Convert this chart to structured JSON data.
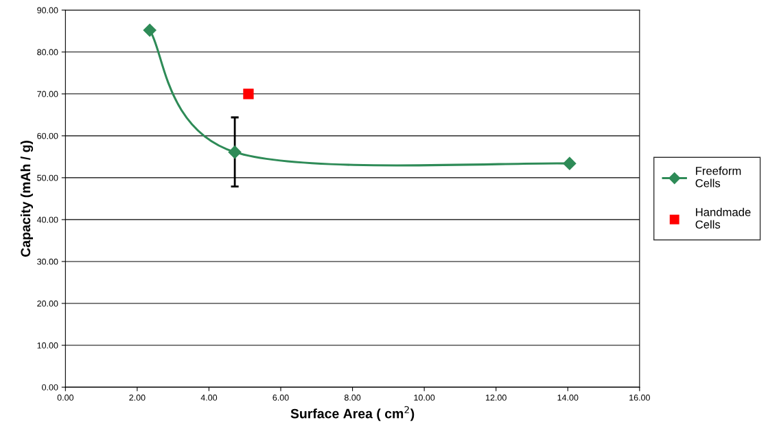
{
  "chart_data": {
    "type": "line",
    "xlabel": "Surface Area ( cm$^{2}$)",
    "ylabel": "Capacity (mAh / g)",
    "series": [
      {
        "name": "Freeform\nCells",
        "color": "#2e8b57",
        "marker": "diamond",
        "x": [
          2.35,
          4.72,
          14.05
        ],
        "values": [
          85.2,
          56.1,
          53.4
        ],
        "errors": [
          null,
          [
            47.9,
            64.4
          ],
          null
        ]
      },
      {
        "name": "Handmade\nCells",
        "type": "scatter",
        "color": "#ff0000",
        "marker": "square",
        "x": [
          5.1
        ],
        "values": [
          70.0
        ]
      }
    ],
    "xlim": [
      0,
      16
    ],
    "ylim": [
      0,
      90
    ],
    "xticks": [
      {
        "value": 0,
        "label": "0.00"
      },
      {
        "value": 2,
        "label": "2.00"
      },
      {
        "value": 4,
        "label": "4.00"
      },
      {
        "value": 6,
        "label": "6.00"
      },
      {
        "value": 8,
        "label": "8.00"
      },
      {
        "value": 10,
        "label": "10.00"
      },
      {
        "value": 12,
        "label": "12.00"
      },
      {
        "value": 14,
        "label": "14.00"
      },
      {
        "value": 16,
        "label": "16.00"
      }
    ],
    "yticks": [
      {
        "value": 0,
        "label": "0.00"
      },
      {
        "value": 10,
        "label": "10.00"
      },
      {
        "value": 20,
        "label": "20.00"
      },
      {
        "value": 30,
        "label": "30.00"
      },
      {
        "value": 40,
        "label": "40.00"
      },
      {
        "value": 50,
        "label": "50.00"
      },
      {
        "value": 60,
        "label": "60.00"
      },
      {
        "value": 70,
        "label": "70.00"
      },
      {
        "value": 80,
        "label": "80.00"
      },
      {
        "value": 90,
        "label": "90.00"
      }
    ],
    "grid": "y",
    "legend": "right"
  }
}
